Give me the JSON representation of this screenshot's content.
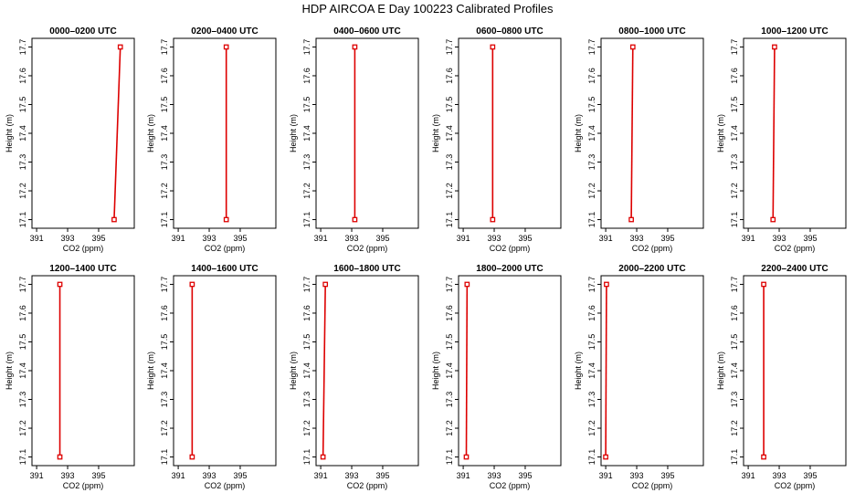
{
  "title": "HDP AIRCOA E  Day 100223  Calibrated Profiles",
  "xlabel": "CO2 (ppm)",
  "ylabel": "Height (m)",
  "colors": {
    "profile": "#dd0000",
    "axis": "#000000"
  },
  "chart_data": [
    {
      "type": "line",
      "title": "0000–0200 UTC",
      "xlabel": "CO2 (ppm)",
      "ylabel": "Height (m)",
      "xlim": [
        390.7,
        397.3
      ],
      "ylim": [
        17.07,
        17.73
      ],
      "xticks": [
        391,
        393,
        395
      ],
      "yticks": [
        17.1,
        17.2,
        17.3,
        17.4,
        17.5,
        17.6,
        17.7
      ],
      "points": [
        {
          "x": 396.0,
          "y": 17.1
        },
        {
          "x": 396.4,
          "y": 17.7
        }
      ]
    },
    {
      "type": "line",
      "title": "0200–0400 UTC",
      "xlabel": "CO2 (ppm)",
      "ylabel": "Height (m)",
      "xlim": [
        390.7,
        397.3
      ],
      "ylim": [
        17.07,
        17.73
      ],
      "xticks": [
        391,
        393,
        395
      ],
      "yticks": [
        17.1,
        17.2,
        17.3,
        17.4,
        17.5,
        17.6,
        17.7
      ],
      "points": [
        {
          "x": 394.1,
          "y": 17.1
        },
        {
          "x": 394.1,
          "y": 17.7
        }
      ]
    },
    {
      "type": "line",
      "title": "0400–0600 UTC",
      "xlabel": "CO2 (ppm)",
      "ylabel": "Height (m)",
      "xlim": [
        390.7,
        397.3
      ],
      "ylim": [
        17.07,
        17.73
      ],
      "xticks": [
        391,
        393,
        395
      ],
      "yticks": [
        17.1,
        17.2,
        17.3,
        17.4,
        17.5,
        17.6,
        17.7
      ],
      "points": [
        {
          "x": 393.2,
          "y": 17.1
        },
        {
          "x": 393.2,
          "y": 17.7
        }
      ]
    },
    {
      "type": "line",
      "title": "0600–0800 UTC",
      "xlabel": "CO2 (ppm)",
      "ylabel": "Height (m)",
      "xlim": [
        390.7,
        397.3
      ],
      "ylim": [
        17.07,
        17.73
      ],
      "xticks": [
        391,
        393,
        395
      ],
      "yticks": [
        17.1,
        17.2,
        17.3,
        17.4,
        17.5,
        17.6,
        17.7
      ],
      "points": [
        {
          "x": 392.9,
          "y": 17.1
        },
        {
          "x": 392.9,
          "y": 17.7
        }
      ]
    },
    {
      "type": "line",
      "title": "0800–1000 UTC",
      "xlabel": "CO2 (ppm)",
      "ylabel": "Height (m)",
      "xlim": [
        390.7,
        397.3
      ],
      "ylim": [
        17.07,
        17.73
      ],
      "xticks": [
        391,
        393,
        395
      ],
      "yticks": [
        17.1,
        17.2,
        17.3,
        17.4,
        17.5,
        17.6,
        17.7
      ],
      "points": [
        {
          "x": 392.65,
          "y": 17.1
        },
        {
          "x": 392.75,
          "y": 17.7
        }
      ]
    },
    {
      "type": "line",
      "title": "1000–1200 UTC",
      "xlabel": "CO2 (ppm)",
      "ylabel": "Height (m)",
      "xlim": [
        390.7,
        397.3
      ],
      "ylim": [
        17.07,
        17.73
      ],
      "xticks": [
        391,
        393,
        395
      ],
      "yticks": [
        17.1,
        17.2,
        17.3,
        17.4,
        17.5,
        17.6,
        17.7
      ],
      "points": [
        {
          "x": 392.6,
          "y": 17.1
        },
        {
          "x": 392.7,
          "y": 17.7
        }
      ]
    },
    {
      "type": "line",
      "title": "1200–1400 UTC",
      "xlabel": "CO2 (ppm)",
      "ylabel": "Height (m)",
      "xlim": [
        390.7,
        397.3
      ],
      "ylim": [
        17.07,
        17.73
      ],
      "xticks": [
        391,
        393,
        395
      ],
      "yticks": [
        17.1,
        17.2,
        17.3,
        17.4,
        17.5,
        17.6,
        17.7
      ],
      "points": [
        {
          "x": 392.5,
          "y": 17.1
        },
        {
          "x": 392.5,
          "y": 17.7
        }
      ]
    },
    {
      "type": "line",
      "title": "1400–1600 UTC",
      "xlabel": "CO2 (ppm)",
      "ylabel": "Height (m)",
      "xlim": [
        390.7,
        397.3
      ],
      "ylim": [
        17.07,
        17.73
      ],
      "xticks": [
        391,
        393,
        395
      ],
      "yticks": [
        17.1,
        17.2,
        17.3,
        17.4,
        17.5,
        17.6,
        17.7
      ],
      "points": [
        {
          "x": 391.9,
          "y": 17.1
        },
        {
          "x": 391.9,
          "y": 17.7
        }
      ]
    },
    {
      "type": "line",
      "title": "1600–1800 UTC",
      "xlabel": "CO2 (ppm)",
      "ylabel": "Height (m)",
      "xlim": [
        390.7,
        397.3
      ],
      "ylim": [
        17.07,
        17.73
      ],
      "xticks": [
        391,
        393,
        395
      ],
      "yticks": [
        17.1,
        17.2,
        17.3,
        17.4,
        17.5,
        17.6,
        17.7
      ],
      "points": [
        {
          "x": 391.15,
          "y": 17.1
        },
        {
          "x": 391.3,
          "y": 17.7
        }
      ]
    },
    {
      "type": "line",
      "title": "1800–2000 UTC",
      "xlabel": "CO2 (ppm)",
      "ylabel": "Height (m)",
      "xlim": [
        390.7,
        397.3
      ],
      "ylim": [
        17.07,
        17.73
      ],
      "xticks": [
        391,
        393,
        395
      ],
      "yticks": [
        17.1,
        17.2,
        17.3,
        17.4,
        17.5,
        17.6,
        17.7
      ],
      "points": [
        {
          "x": 391.2,
          "y": 17.1
        },
        {
          "x": 391.25,
          "y": 17.7
        }
      ]
    },
    {
      "type": "line",
      "title": "2000–2200 UTC",
      "xlabel": "CO2 (ppm)",
      "ylabel": "Height (m)",
      "xlim": [
        390.7,
        397.3
      ],
      "ylim": [
        17.07,
        17.73
      ],
      "xticks": [
        391,
        393,
        395
      ],
      "yticks": [
        17.1,
        17.2,
        17.3,
        17.4,
        17.5,
        17.6,
        17.7
      ],
      "points": [
        {
          "x": 391.0,
          "y": 17.1
        },
        {
          "x": 391.05,
          "y": 17.7
        }
      ]
    },
    {
      "type": "line",
      "title": "2200–2400 UTC",
      "xlabel": "CO2 (ppm)",
      "ylabel": "Height (m)",
      "xlim": [
        390.7,
        397.3
      ],
      "ylim": [
        17.07,
        17.73
      ],
      "xticks": [
        391,
        393,
        395
      ],
      "yticks": [
        17.1,
        17.2,
        17.3,
        17.4,
        17.5,
        17.6,
        17.7
      ],
      "points": [
        {
          "x": 392.0,
          "y": 17.1
        },
        {
          "x": 392.0,
          "y": 17.7
        }
      ]
    }
  ]
}
